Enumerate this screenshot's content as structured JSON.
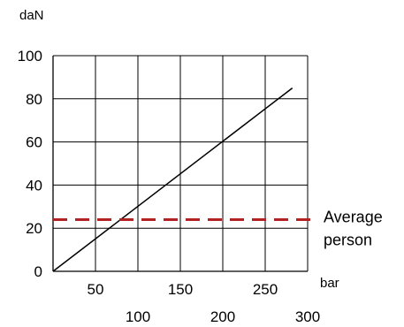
{
  "chart_data": {
    "type": "line",
    "title": "",
    "xlabel": "bar",
    "ylabel": "daN",
    "xlim": [
      0,
      300
    ],
    "ylim": [
      0,
      100
    ],
    "grid": true,
    "xticks_lower": [
      {
        "value": 100,
        "label": "100"
      },
      {
        "value": 200,
        "label": "200"
      },
      {
        "value": 300,
        "label": "300"
      }
    ],
    "xticks_upper": [
      {
        "value": 50,
        "label": "50"
      },
      {
        "value": 150,
        "label": "150"
      },
      {
        "value": 250,
        "label": "250"
      }
    ],
    "yticks": [
      {
        "value": 0,
        "label": "0"
      },
      {
        "value": 20,
        "label": "20"
      },
      {
        "value": 40,
        "label": "40"
      },
      {
        "value": 60,
        "label": "60"
      },
      {
        "value": 80,
        "label": "80"
      },
      {
        "value": 100,
        "label": "100"
      }
    ],
    "series": [
      {
        "color": "#000000",
        "x": [
          0,
          282
        ],
        "y": [
          0,
          85
        ]
      }
    ],
    "reference_line": {
      "y": 24,
      "color": "#b22222",
      "style": "dashed",
      "label_lines": [
        "Average",
        "person"
      ]
    }
  }
}
